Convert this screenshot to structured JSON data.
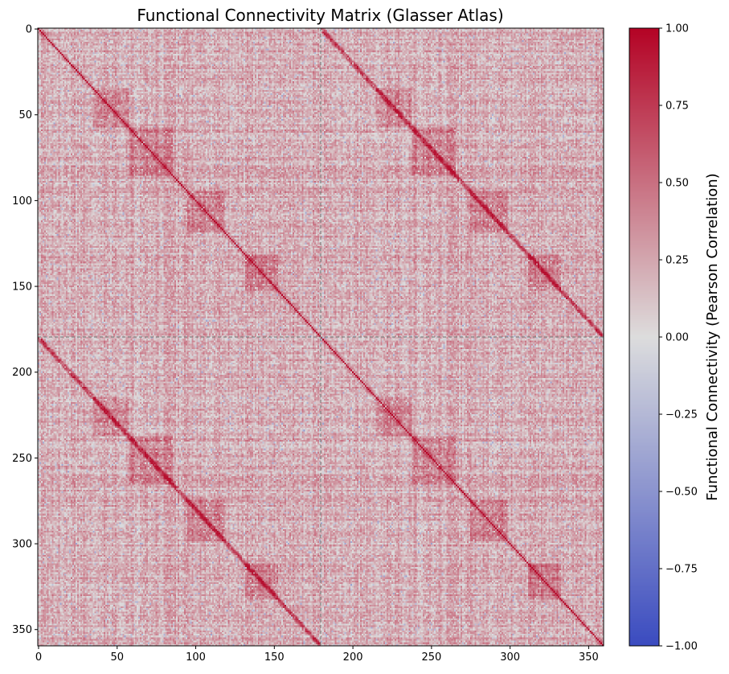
{
  "chart_data": {
    "type": "heatmap",
    "title": "Functional Connectivity Matrix (Glasser Atlas)",
    "xlabel": "",
    "ylabel": "",
    "n_regions": 360,
    "hemisphere_split": 180,
    "x_ticks": [
      0,
      50,
      100,
      150,
      200,
      250,
      300,
      350
    ],
    "y_ticks": [
      0,
      50,
      100,
      150,
      200,
      250,
      300,
      350
    ],
    "xlim": [
      0,
      360
    ],
    "ylim": [
      360,
      0
    ],
    "colormap": "coolwarm",
    "vmin": -1.0,
    "vmax": 1.0,
    "diagonal_value": 1.0,
    "colorbar": {
      "label": "Functional Connectivity (Pearson Correlation)",
      "ticks": [
        1.0,
        0.75,
        0.5,
        0.25,
        0.0,
        -0.25,
        -0.5,
        -0.75,
        -1.0
      ],
      "tick_labels": [
        "1.00",
        "0.75",
        "0.50",
        "0.25",
        "0.00",
        "−0.25",
        "−0.50",
        "−0.75",
        "−1.00"
      ]
    },
    "divider_lines": {
      "at": 180,
      "style": "dashed",
      "color": "#808080"
    },
    "colors": {
      "low": "#3b4cc0",
      "mid": "#dddddd",
      "high": "#b40426"
    }
  }
}
